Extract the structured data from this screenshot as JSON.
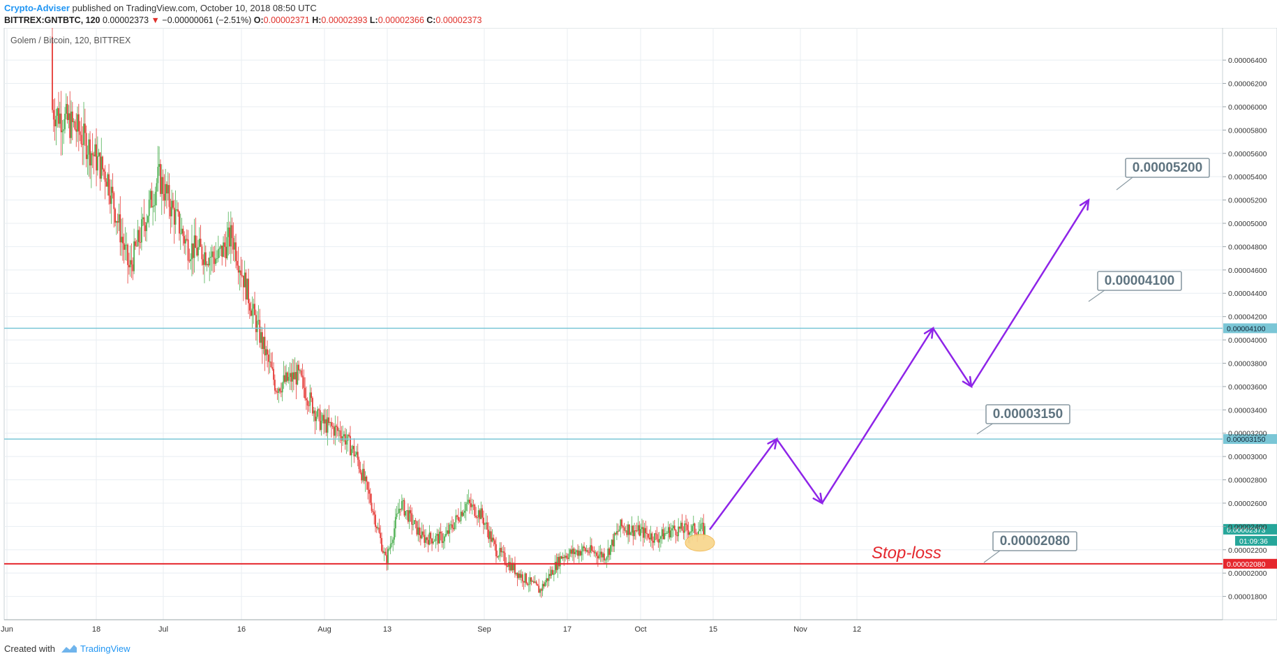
{
  "header": {
    "author": "Crypto-Adviser",
    "published": "published on TradingView.com, October 10, 2018 08:50 UTC",
    "symbol": "BITTREX:GNTBTC, 120",
    "change_arrow": "▼",
    "last": "0.00002373",
    "change": "−0.00000061 (−2.51%)",
    "o_label": "O:",
    "o": "0.00002371",
    "h_label": "H:",
    "h": "0.00002393",
    "l_label": "L:",
    "l": "0.00002366",
    "c_label": "C:",
    "c": "0.00002373"
  },
  "footer": {
    "created_with": "Created with",
    "brand": "TradingView"
  },
  "colors": {
    "up": "#4caf50",
    "down": "#e53935",
    "grid": "#e8eef2",
    "level": "#7ac6d6",
    "stop": "#e5272d",
    "arrow": "#8e24e8",
    "marker": "#f8d58a",
    "label_border": "#8a9aa3",
    "label_text": "#5f7480"
  },
  "chart_data": {
    "type": "candlestick",
    "title": "Golem / Bitcoin, 120, BITTREX",
    "y_unit": "BTC",
    "ylim": [
      1.6e-05,
      6.6e-05
    ],
    "x_labels": [
      "Jun",
      "18",
      "Jul",
      "16",
      "Aug",
      "13",
      "Sep",
      "17",
      "Oct",
      "15",
      "Nov",
      "12"
    ],
    "y_ticks": [
      "0.00001800",
      "0.00002000",
      "0.00002200",
      "0.00002400",
      "0.00002600",
      "0.00002800",
      "0.00003000",
      "0.00003200",
      "0.00003400",
      "0.00003600",
      "0.00003800",
      "0.00004000",
      "0.00004200",
      "0.00004400",
      "0.00004600",
      "0.00004800",
      "0.00005000",
      "0.00005200",
      "0.00005400",
      "0.00005600",
      "0.00005800",
      "0.00006000",
      "0.00006200",
      "0.00006400"
    ],
    "price_path": [
      [
        0.0,
        6.6e-05
      ],
      [
        0.04,
        6e-05
      ],
      [
        0.08,
        5.8e-05
      ],
      [
        0.12,
        5.4e-05
      ],
      [
        0.15,
        4.6e-05
      ],
      [
        0.19,
        5.4e-05
      ],
      [
        0.23,
        4.8e-05
      ],
      [
        0.27,
        4.7e-05
      ],
      [
        0.29,
        4.9e-05
      ],
      [
        0.32,
        4.2e-05
      ],
      [
        0.35,
        3.6e-05
      ],
      [
        0.38,
        3.7e-05
      ],
      [
        0.41,
        3.3e-05
      ],
      [
        0.44,
        3.2e-05
      ],
      [
        0.46,
        3e-05
      ],
      [
        0.48,
        2.6e-05
      ],
      [
        0.5,
        2.1e-05
      ],
      [
        0.52,
        2.6e-05
      ],
      [
        0.55,
        2.3e-05
      ],
      [
        0.58,
        2.3e-05
      ],
      [
        0.61,
        2.6e-05
      ],
      [
        0.63,
        2.5e-05
      ],
      [
        0.65,
        2.2e-05
      ],
      [
        0.68,
        2e-05
      ],
      [
        0.71,
        1.85e-05
      ],
      [
        0.74,
        2.15e-05
      ],
      [
        0.77,
        2.2e-05
      ],
      [
        0.8,
        2.15e-05
      ],
      [
        0.82,
        2.4e-05
      ],
      [
        0.85,
        2.35e-05
      ],
      [
        0.87,
        2.3e-05
      ],
      [
        0.89,
        2.373e-05
      ]
    ],
    "current_price": "0.00002373",
    "countdown": "01:09:36",
    "levels": [
      {
        "name": "resistance-2",
        "value": 4.1e-05,
        "label": "0.00004100",
        "axis_label": "0.00004100"
      },
      {
        "name": "resistance-1",
        "value": 3.15e-05,
        "label": "0.00003150",
        "axis_label": "0.00003150"
      },
      {
        "name": "stop-loss",
        "value": 2.08e-05,
        "label": "0.00002080",
        "axis_label": "0.00002080",
        "text": "Stop-loss"
      }
    ],
    "target_label": "0.00005200",
    "projection_path": [
      {
        "date": "Oct 10",
        "price": 2.373e-05
      },
      {
        "date": "Oct 26",
        "price": 3.15e-05
      },
      {
        "date": "Nov 3",
        "price": 2.6e-05
      },
      {
        "date": "Nov 21",
        "price": 4.1e-05
      },
      {
        "date": "Nov 28",
        "price": 3.6e-05
      },
      {
        "date": "Dec 15",
        "price": 5.2e-05
      }
    ]
  }
}
